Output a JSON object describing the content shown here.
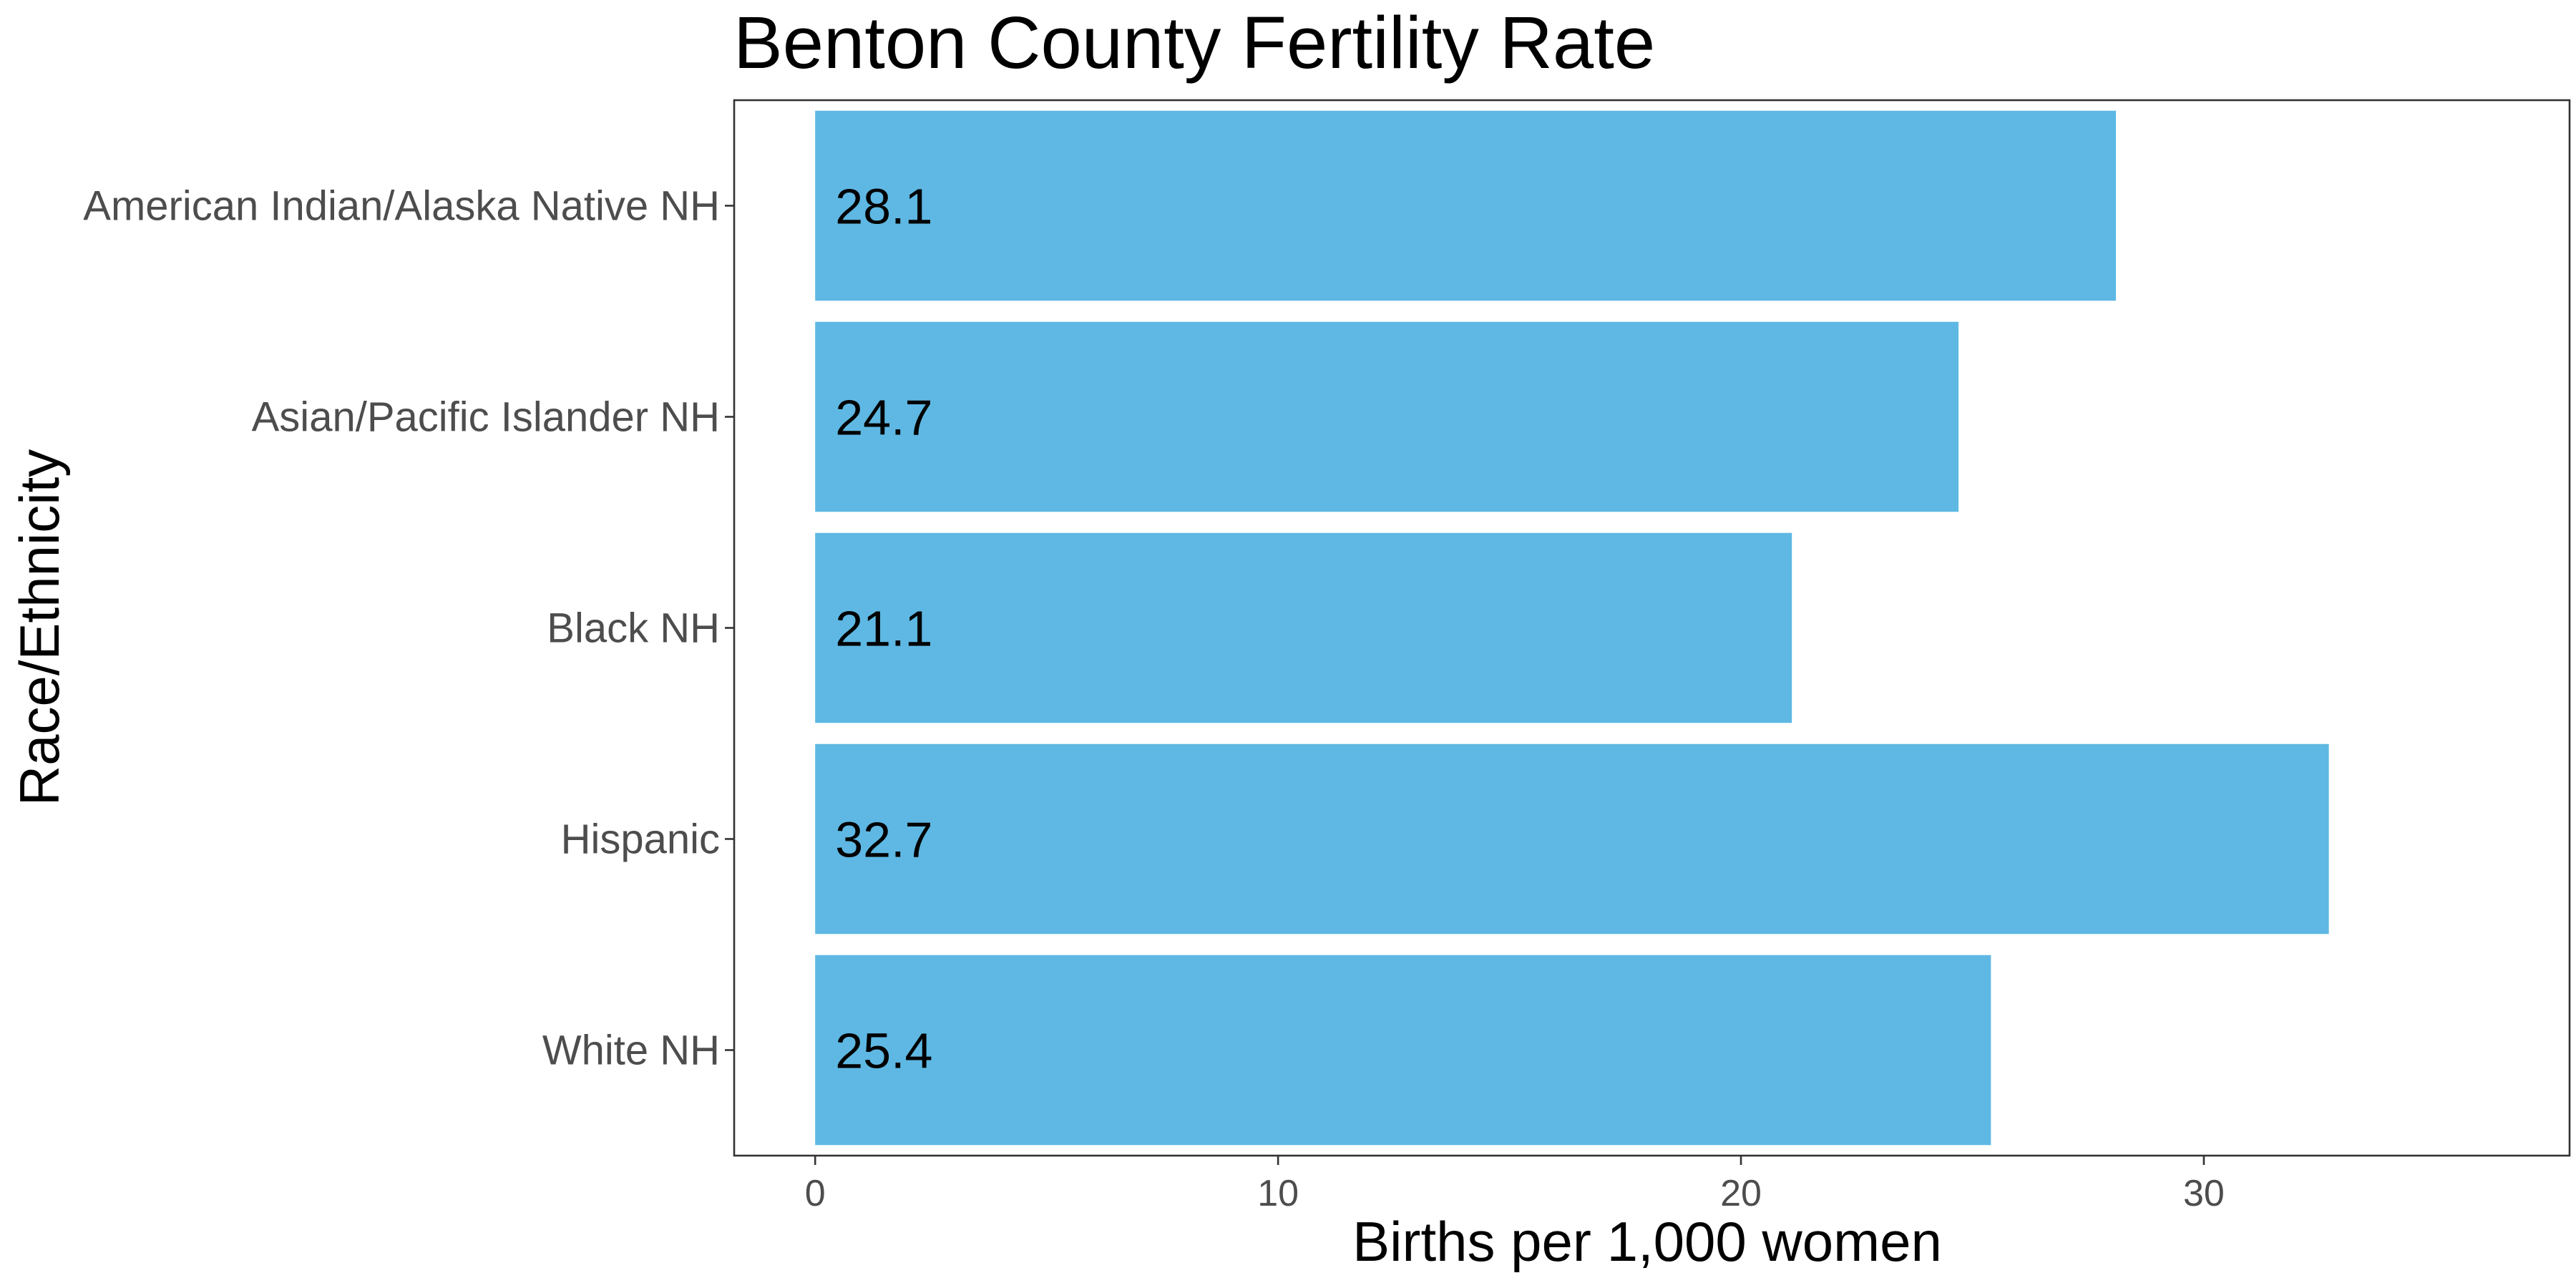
{
  "chart_data": {
    "type": "bar",
    "orientation": "horizontal",
    "title": "Benton County Fertility Rate",
    "xlabel": "Births per 1,000 women",
    "ylabel": "Race/Ethnicity",
    "categories": [
      "American Indian/Alaska Native NH",
      "Asian/Pacific Islander NH",
      "Black NH",
      "Hispanic",
      "White NH"
    ],
    "values": [
      28.1,
      24.7,
      21.1,
      32.7,
      25.4
    ],
    "data_labels": [
      "28.1",
      "24.7",
      "21.1",
      "32.7",
      "25.4"
    ],
    "xlim": [
      -1.75,
      37.9
    ],
    "x_ticks": [
      0,
      10,
      20,
      30
    ],
    "x_tick_labels": [
      "0",
      "10",
      "20",
      "30"
    ],
    "grid": false,
    "legend": "none",
    "bar_color": "#5EB8E3"
  }
}
